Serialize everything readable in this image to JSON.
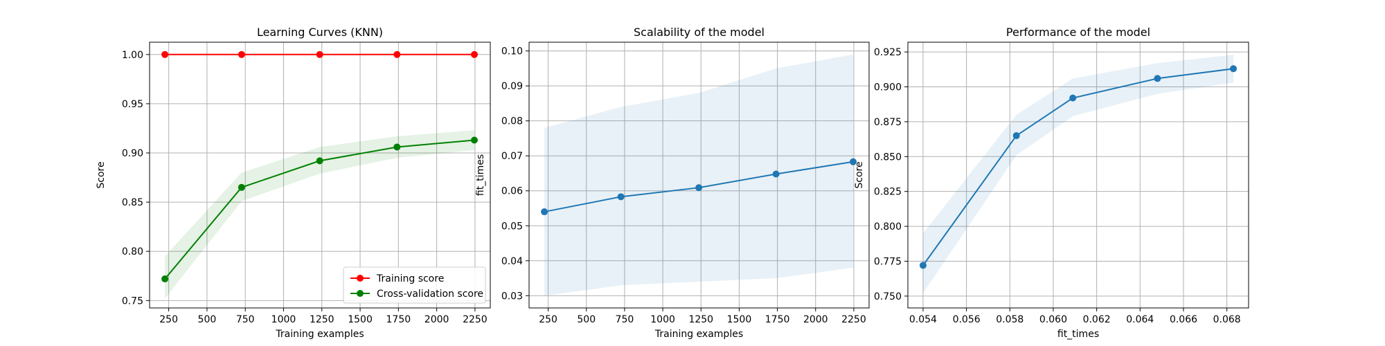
{
  "chart_data": [
    {
      "type": "line",
      "title": "Learning Curves (KNN)",
      "xlabel": "Training examples",
      "ylabel": "Score",
      "xlim": [
        125,
        2350
      ],
      "ylim": [
        0.7425,
        1.0125
      ],
      "xticks": [
        250,
        500,
        750,
        1000,
        1250,
        1500,
        1750,
        2000,
        2250
      ],
      "xtick_labels": [
        "250",
        "500",
        "750",
        "1000",
        "1250",
        "1500",
        "1750",
        "2000",
        "2250"
      ],
      "yticks": [
        0.75,
        0.8,
        0.85,
        0.9,
        0.95,
        1.0
      ],
      "ytick_labels": [
        "0.75",
        "0.80",
        "0.85",
        "0.90",
        "0.95",
        "1.00"
      ],
      "grid": true,
      "legend_position": "lower-right",
      "series": [
        {
          "name": "Training score",
          "color": "#ff0000",
          "x": [
            225,
            726,
            1236,
            1741,
            2246
          ],
          "y": [
            1.0,
            1.0,
            1.0,
            1.0,
            1.0
          ],
          "band_low": [
            1.0,
            1.0,
            1.0,
            1.0,
            1.0
          ],
          "band_high": [
            1.0,
            1.0,
            1.0,
            1.0,
            1.0
          ]
        },
        {
          "name": "Cross-validation score",
          "color": "#008000",
          "x": [
            225,
            726,
            1236,
            1741,
            2246
          ],
          "y": [
            0.772,
            0.865,
            0.892,
            0.906,
            0.913
          ],
          "band_low": [
            0.752,
            0.851,
            0.879,
            0.895,
            0.903
          ],
          "band_high": [
            0.795,
            0.88,
            0.906,
            0.917,
            0.923
          ]
        }
      ]
    },
    {
      "type": "line",
      "title": "Scalability of the model",
      "xlabel": "Training examples",
      "ylabel": "fit_times",
      "xlim": [
        125,
        2350
      ],
      "ylim": [
        0.0265,
        0.1025
      ],
      "xticks": [
        250,
        500,
        750,
        1000,
        1250,
        1500,
        1750,
        2000,
        2250
      ],
      "xtick_labels": [
        "250",
        "500",
        "750",
        "1000",
        "1250",
        "1500",
        "1750",
        "2000",
        "2250"
      ],
      "yticks": [
        0.03,
        0.04,
        0.05,
        0.06,
        0.07,
        0.08,
        0.09,
        0.1
      ],
      "ytick_labels": [
        "0.03",
        "0.04",
        "0.05",
        "0.06",
        "0.07",
        "0.08",
        "0.09",
        "0.10"
      ],
      "grid": true,
      "series": [
        {
          "color": "#1f77b4",
          "x": [
            225,
            726,
            1236,
            1741,
            2246
          ],
          "y": [
            0.054,
            0.0583,
            0.0609,
            0.0648,
            0.0683
          ],
          "band_low": [
            0.03,
            0.033,
            0.034,
            0.035,
            0.038
          ],
          "band_high": [
            0.078,
            0.084,
            0.088,
            0.095,
            0.099
          ]
        }
      ]
    },
    {
      "type": "line",
      "title": "Performance of the model",
      "xlabel": "fit_times",
      "ylabel": "Score",
      "xlim": [
        0.0533,
        0.069
      ],
      "ylim": [
        0.7415,
        0.932
      ],
      "xticks": [
        0.054,
        0.056,
        0.058,
        0.06,
        0.062,
        0.064,
        0.066,
        0.068
      ],
      "xtick_labels": [
        "0.054",
        "0.056",
        "0.058",
        "0.060",
        "0.062",
        "0.064",
        "0.066",
        "0.068"
      ],
      "yticks": [
        0.75,
        0.775,
        0.8,
        0.825,
        0.85,
        0.875,
        0.9,
        0.925
      ],
      "ytick_labels": [
        "0.750",
        "0.775",
        "0.800",
        "0.825",
        "0.850",
        "0.875",
        "0.900",
        "0.925"
      ],
      "grid": true,
      "series": [
        {
          "color": "#1f77b4",
          "x": [
            0.054,
            0.0583,
            0.0609,
            0.0648,
            0.0683
          ],
          "y": [
            0.772,
            0.865,
            0.892,
            0.906,
            0.913
          ],
          "band_low": [
            0.752,
            0.851,
            0.879,
            0.895,
            0.903
          ],
          "band_high": [
            0.795,
            0.88,
            0.906,
            0.917,
            0.923
          ]
        }
      ]
    }
  ]
}
